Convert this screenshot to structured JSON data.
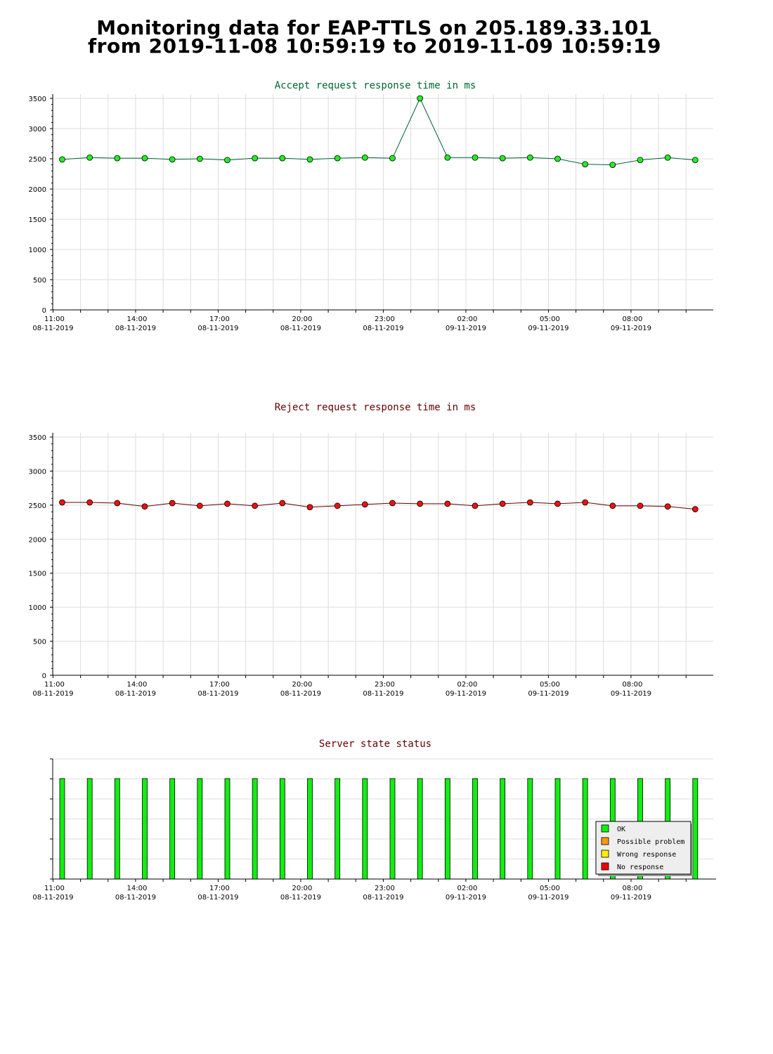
{
  "page": {
    "title_line1": "Monitoring data for EAP-TTLS on 205.189.33.101",
    "title_line2": "from 2019-11-08 10:59:19 to 2019-11-09 10:59:19"
  },
  "colors": {
    "accept_line": "#006633",
    "accept_marker": "#22ee22",
    "reject_line": "#660000",
    "reject_marker": "#ee1111",
    "ok": "#11ee11",
    "possible_problem": "#ff9900",
    "wrong_response": "#ffee00",
    "no_response": "#ee0000",
    "grid": "#dddddd"
  },
  "x_ticks": [
    {
      "time": "11:00",
      "date": "08-11-2019"
    },
    {
      "time": "14:00",
      "date": "08-11-2019"
    },
    {
      "time": "17:00",
      "date": "08-11-2019"
    },
    {
      "time": "20:00",
      "date": "08-11-2019"
    },
    {
      "time": "23:00",
      "date": "08-11-2019"
    },
    {
      "time": "02:00",
      "date": "09-11-2019"
    },
    {
      "time": "05:00",
      "date": "09-11-2019"
    },
    {
      "time": "08:00",
      "date": "09-11-2019"
    }
  ],
  "chart_data": [
    {
      "type": "line",
      "title": "Accept request response time in ms",
      "x": [
        "2019-11-08 11:20",
        "2019-11-08 12:20",
        "2019-11-08 13:20",
        "2019-11-08 14:20",
        "2019-11-08 15:20",
        "2019-11-08 16:20",
        "2019-11-08 17:20",
        "2019-11-08 18:20",
        "2019-11-08 19:20",
        "2019-11-08 20:20",
        "2019-11-08 21:20",
        "2019-11-08 22:20",
        "2019-11-08 23:20",
        "2019-11-09 00:20",
        "2019-11-09 01:20",
        "2019-11-09 02:20",
        "2019-11-09 03:20",
        "2019-11-09 04:20",
        "2019-11-09 05:20",
        "2019-11-09 06:20",
        "2019-11-09 07:20",
        "2019-11-09 08:20",
        "2019-11-09 09:20",
        "2019-11-09 10:20"
      ],
      "values": [
        2490,
        2520,
        2510,
        2510,
        2490,
        2500,
        2480,
        2510,
        2510,
        2490,
        2510,
        2520,
        2510,
        3500,
        2520,
        2520,
        2510,
        2520,
        2500,
        2410,
        2400,
        2480,
        2520,
        2480
      ],
      "ylim": [
        0,
        3500
      ],
      "yticks": [
        0,
        500,
        1000,
        1500,
        2000,
        2500,
        3000,
        3500
      ],
      "grid": true
    },
    {
      "type": "line",
      "title": "Reject request response time in ms",
      "x": [
        "2019-11-08 11:20",
        "2019-11-08 12:20",
        "2019-11-08 13:20",
        "2019-11-08 14:20",
        "2019-11-08 15:20",
        "2019-11-08 16:20",
        "2019-11-08 17:20",
        "2019-11-08 18:20",
        "2019-11-08 19:20",
        "2019-11-08 20:20",
        "2019-11-08 21:20",
        "2019-11-08 22:20",
        "2019-11-08 23:20",
        "2019-11-09 00:20",
        "2019-11-09 01:20",
        "2019-11-09 02:20",
        "2019-11-09 03:20",
        "2019-11-09 04:20",
        "2019-11-09 05:20",
        "2019-11-09 06:20",
        "2019-11-09 07:20",
        "2019-11-09 08:20",
        "2019-11-09 09:20",
        "2019-11-09 10:20"
      ],
      "values": [
        2540,
        2540,
        2530,
        2480,
        2530,
        2490,
        2520,
        2490,
        2530,
        2470,
        2490,
        2510,
        2530,
        2520,
        2520,
        2490,
        2520,
        2540,
        2520,
        2540,
        2490,
        2490,
        2480,
        2440
      ],
      "ylim": [
        0,
        3500
      ],
      "yticks": [
        0,
        500,
        1000,
        1500,
        2000,
        2500,
        3000,
        3500
      ],
      "grid": true
    },
    {
      "type": "bar",
      "title": "Server state status",
      "x": [
        "2019-11-08 11:20",
        "2019-11-08 12:20",
        "2019-11-08 13:20",
        "2019-11-08 14:20",
        "2019-11-08 15:20",
        "2019-11-08 16:20",
        "2019-11-08 17:20",
        "2019-11-08 18:20",
        "2019-11-08 19:20",
        "2019-11-08 20:20",
        "2019-11-08 21:20",
        "2019-11-08 22:20",
        "2019-11-08 23:20",
        "2019-11-09 00:20",
        "2019-11-09 01:20",
        "2019-11-09 02:20",
        "2019-11-09 03:20",
        "2019-11-09 04:20",
        "2019-11-09 05:20",
        "2019-11-09 06:20",
        "2019-11-09 07:20",
        "2019-11-09 08:20",
        "2019-11-09 09:20",
        "2019-11-09 10:20"
      ],
      "states": [
        "OK",
        "OK",
        "OK",
        "OK",
        "OK",
        "OK",
        "OK",
        "OK",
        "OK",
        "OK",
        "OK",
        "OK",
        "OK",
        "OK",
        "OK",
        "OK",
        "OK",
        "OK",
        "OK",
        "OK",
        "OK",
        "OK",
        "OK",
        "OK"
      ],
      "legend": [
        "OK",
        "Possible problem",
        "Wrong response",
        "No response"
      ],
      "legend_position": "bottom-right"
    }
  ]
}
